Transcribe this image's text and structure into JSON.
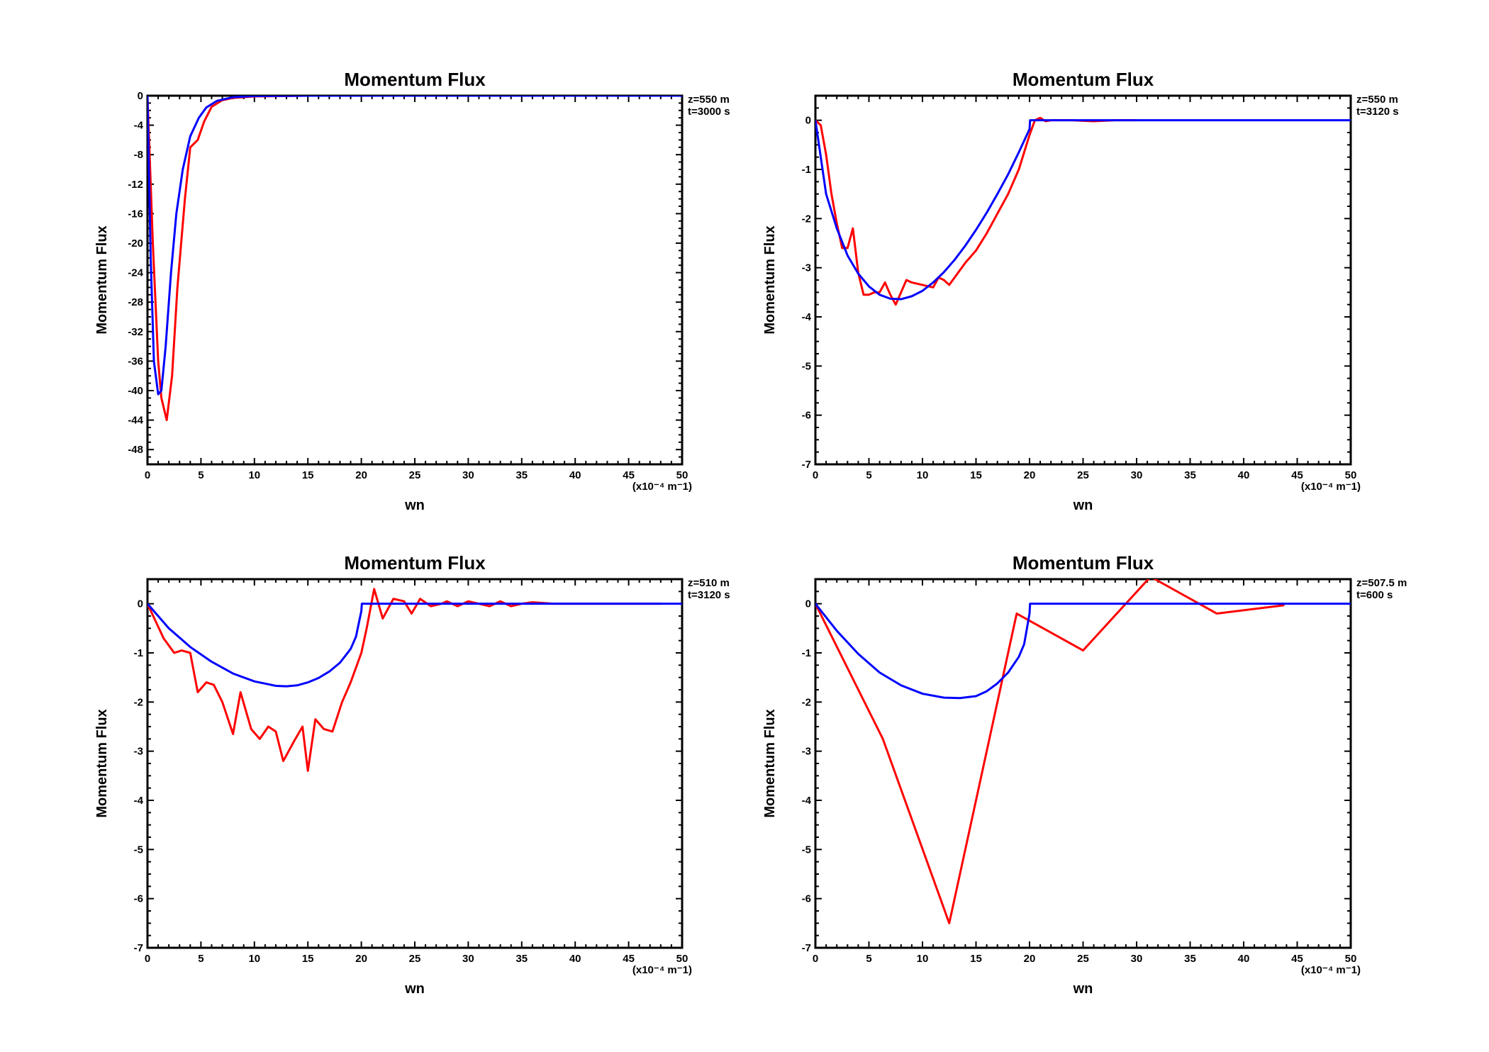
{
  "colors": {
    "simulated": "#ff0000",
    "theory": "#0000ff",
    "axes": "#000000"
  },
  "chart_data": [
    {
      "type": "line",
      "title": "Momentum Flux",
      "xlabel": "wn",
      "ylabel": "Momentum Flux",
      "x_unit": "(x10⁻⁴ m⁻1)",
      "annotation": [
        "z=550  m",
        "t=3000  s"
      ],
      "xlim": [
        0,
        50
      ],
      "ylim": [
        -50,
        0
      ],
      "xticks": [
        0,
        5,
        10,
        15,
        20,
        25,
        30,
        35,
        40,
        45,
        50
      ],
      "yticks": [
        0,
        -4,
        -8,
        -12,
        -16,
        -20,
        -24,
        -28,
        -32,
        -36,
        -40,
        -44,
        -48
      ],
      "grid": false,
      "series": [
        {
          "color": "red",
          "x": [
            0,
            0.5,
            1,
            1.3,
            1.8,
            2.3,
            2.8,
            3.5,
            4,
            4.7,
            5.3,
            6,
            7,
            8,
            10,
            15,
            20,
            30,
            40,
            50
          ],
          "y": [
            0,
            -20,
            -36,
            -41,
            -44,
            -38,
            -26,
            -14,
            -7,
            -6,
            -3.5,
            -1.5,
            -0.6,
            -0.3,
            -0.1,
            0,
            0,
            0,
            0,
            0
          ]
        },
        {
          "color": "blue",
          "x": [
            0,
            0.3,
            0.6,
            1,
            1.3,
            1.7,
            2.2,
            2.7,
            3.3,
            4,
            4.8,
            5.5,
            6.5,
            8,
            10,
            15,
            20,
            30,
            40,
            50
          ],
          "y": [
            0,
            -22,
            -36,
            -40.5,
            -40,
            -34,
            -24,
            -16,
            -10,
            -5.5,
            -3,
            -1.6,
            -0.7,
            -0.2,
            -0.05,
            0,
            0,
            0,
            0,
            0
          ]
        }
      ]
    },
    {
      "type": "line",
      "title": "Momentum Flux",
      "xlabel": "wn",
      "ylabel": "Momentum Flux",
      "x_unit": "(x10⁻⁴ m⁻1)",
      "annotation": [
        "z=550  m",
        "t=3120  s"
      ],
      "xlim": [
        0,
        50
      ],
      "ylim": [
        -7,
        0.5
      ],
      "xticks": [
        0,
        5,
        10,
        15,
        20,
        25,
        30,
        35,
        40,
        45,
        50
      ],
      "yticks": [
        0,
        -1,
        -2,
        -3,
        -4,
        -5,
        -6,
        -7
      ],
      "grid": false,
      "series": [
        {
          "color": "red",
          "x": [
            0,
            0.5,
            1,
            1.5,
            2,
            2.5,
            3,
            3.5,
            4,
            4.5,
            5,
            5.5,
            6,
            6.5,
            7,
            7.5,
            8,
            8.5,
            9,
            10,
            11,
            11.5,
            12,
            12.5,
            13,
            14,
            15,
            16,
            17,
            18,
            19,
            20,
            20.5,
            21,
            21.5,
            22,
            24,
            26,
            28,
            30
          ],
          "y": [
            0,
            -0.1,
            -0.7,
            -1.5,
            -2.1,
            -2.6,
            -2.6,
            -2.2,
            -3.1,
            -3.55,
            -3.55,
            -3.5,
            -3.5,
            -3.3,
            -3.55,
            -3.75,
            -3.5,
            -3.25,
            -3.3,
            -3.35,
            -3.4,
            -3.2,
            -3.25,
            -3.35,
            -3.2,
            -2.9,
            -2.65,
            -2.3,
            -1.9,
            -1.5,
            -1.0,
            -0.3,
            0.0,
            0.05,
            -0.02,
            0.0,
            0.0,
            -0.02,
            0,
            0
          ]
        },
        {
          "color": "blue",
          "x": [
            0,
            1,
            2,
            3,
            4,
            5,
            6,
            7,
            8,
            9,
            10,
            11,
            12,
            13,
            14,
            15,
            16,
            17,
            18,
            19,
            20,
            20.05,
            25,
            30,
            35,
            40,
            45,
            50
          ],
          "y": [
            0,
            -1.5,
            -2.2,
            -2.75,
            -3.12,
            -3.38,
            -3.55,
            -3.63,
            -3.64,
            -3.58,
            -3.47,
            -3.3,
            -3.09,
            -2.84,
            -2.55,
            -2.23,
            -1.88,
            -1.5,
            -1.1,
            -0.65,
            -0.18,
            0,
            0,
            0,
            0,
            0,
            0,
            0
          ]
        }
      ]
    },
    {
      "type": "line",
      "title": "Momentum Flux",
      "xlabel": "wn",
      "ylabel": "Momentum Flux",
      "x_unit": "(x10⁻⁴ m⁻1)",
      "annotation": [
        "z=510  m",
        "t=3120  s"
      ],
      "xlim": [
        0,
        50
      ],
      "ylim": [
        -7,
        0.5
      ],
      "xticks": [
        0,
        5,
        10,
        15,
        20,
        25,
        30,
        35,
        40,
        45,
        50
      ],
      "yticks": [
        0,
        -1,
        -2,
        -3,
        -4,
        -5,
        -6,
        -7
      ],
      "grid": false,
      "series": [
        {
          "color": "red",
          "x": [
            0,
            1.5,
            2.5,
            3.2,
            4,
            4.7,
            5.5,
            6.2,
            7,
            8,
            8.7,
            9.7,
            10.5,
            11.3,
            12,
            12.7,
            13.7,
            14.5,
            15,
            15.7,
            16.5,
            17.3,
            18.2,
            19,
            20,
            20.5,
            21.2,
            22,
            23,
            24,
            24.7,
            25.5,
            26.5,
            27.5,
            28,
            29,
            30,
            31,
            32,
            33,
            34,
            35,
            36,
            38,
            40,
            42,
            44,
            46,
            48
          ],
          "y": [
            0,
            -0.7,
            -1.0,
            -0.95,
            -1.0,
            -1.8,
            -1.6,
            -1.65,
            -2.0,
            -2.65,
            -1.8,
            -2.55,
            -2.75,
            -2.5,
            -2.6,
            -3.2,
            -2.8,
            -2.5,
            -3.4,
            -2.35,
            -2.55,
            -2.6,
            -2.0,
            -1.6,
            -1.0,
            -0.5,
            0.3,
            -0.3,
            0.1,
            0.05,
            -0.2,
            0.1,
            -0.05,
            0,
            0.05,
            -0.05,
            0.05,
            0,
            -0.05,
            0.05,
            -0.05,
            0,
            0.03,
            0,
            0,
            0,
            0,
            0,
            0
          ]
        },
        {
          "color": "blue",
          "x": [
            0,
            2,
            4,
            6,
            8,
            10,
            12,
            13,
            14,
            15,
            16,
            17,
            18,
            19,
            19.5,
            20,
            20.05,
            25,
            30,
            35,
            40,
            45,
            50
          ],
          "y": [
            0,
            -0.5,
            -0.88,
            -1.18,
            -1.42,
            -1.58,
            -1.67,
            -1.68,
            -1.66,
            -1.6,
            -1.51,
            -1.38,
            -1.2,
            -0.92,
            -0.67,
            -0.15,
            0,
            0,
            0,
            0,
            0,
            0,
            0
          ]
        }
      ]
    },
    {
      "type": "line",
      "title": "Momentum Flux",
      "xlabel": "wn",
      "ylabel": "Momentum Flux",
      "x_unit": "(x10⁻⁴ m⁻1)",
      "annotation": [
        "z=507.5 m",
        "t=600  s"
      ],
      "xlim": [
        0,
        50
      ],
      "ylim": [
        -7,
        0.5
      ],
      "xticks": [
        0,
        5,
        10,
        15,
        20,
        25,
        30,
        35,
        40,
        45,
        50
      ],
      "yticks": [
        0,
        -1,
        -2,
        -3,
        -4,
        -5,
        -6,
        -7
      ],
      "grid": false,
      "series": [
        {
          "color": "red",
          "x": [
            0,
            6.3,
            12.5,
            18.8,
            25,
            31.3,
            37.5,
            43.8
          ],
          "y": [
            0,
            -2.75,
            -6.5,
            -0.2,
            -0.95,
            0.55,
            -0.2,
            -0.03
          ]
        },
        {
          "color": "blue",
          "x": [
            0,
            2,
            4,
            6,
            8,
            10,
            12,
            13.5,
            15,
            16,
            17,
            18,
            19,
            19.5,
            20,
            20.05,
            25,
            30,
            35,
            40,
            45,
            50
          ],
          "y": [
            0,
            -0.55,
            -1.02,
            -1.4,
            -1.66,
            -1.83,
            -1.91,
            -1.92,
            -1.88,
            -1.78,
            -1.62,
            -1.4,
            -1.08,
            -0.82,
            -0.2,
            0,
            0,
            0,
            0,
            0,
            0,
            0
          ]
        }
      ]
    }
  ]
}
